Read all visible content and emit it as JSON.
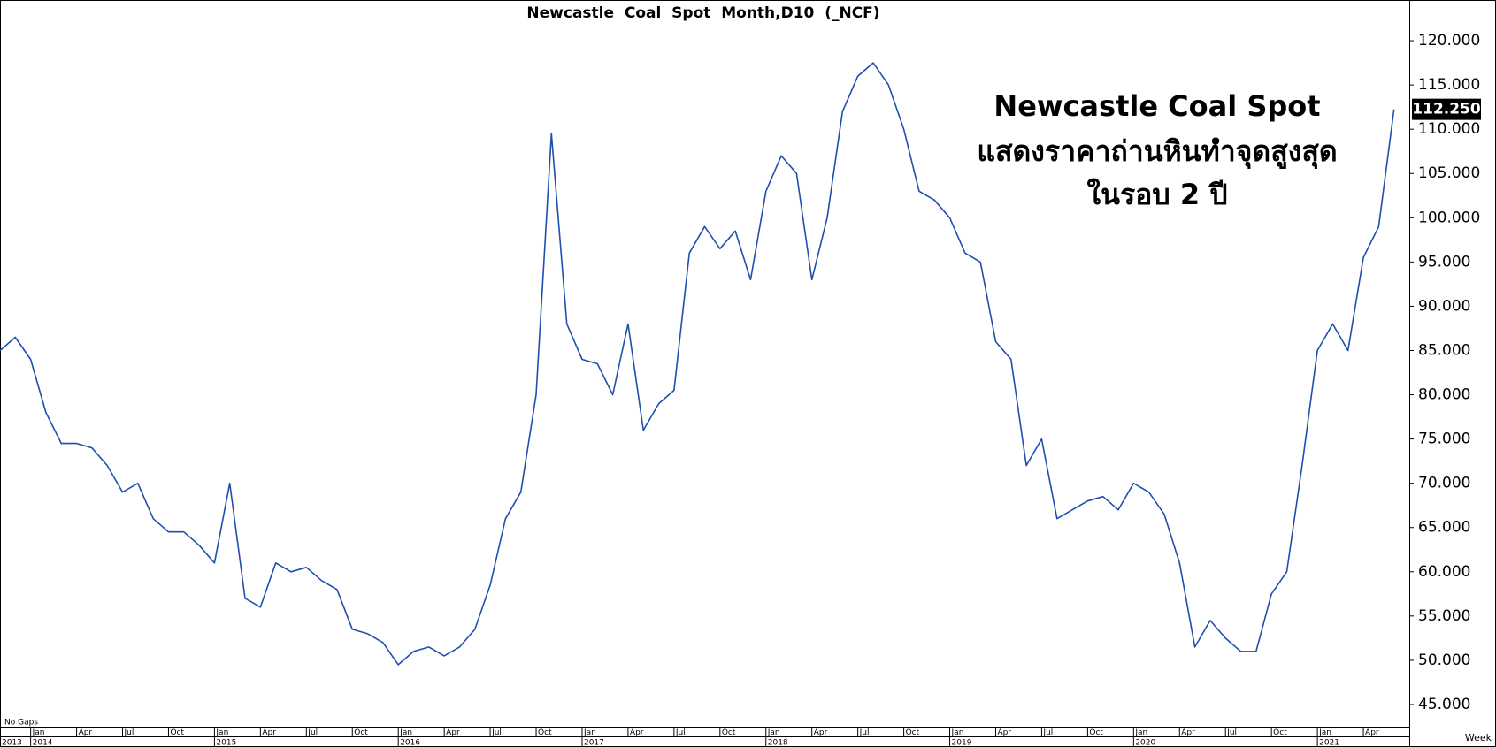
{
  "chart_data": {
    "type": "line",
    "title": "Newcastle  Coal  Spot  Month,D10  (_NCF)",
    "annotation": [
      "Newcastle Coal Spot",
      "แสดงราคาถ่านหินทำจุดสูงสุด",
      "ในรอบ 2 ปี"
    ],
    "footer_left": "No Gaps",
    "footer_right": "Week",
    "color": "#1f4fae",
    "x": [
      "2013-11",
      "2013-12",
      "2014-01",
      "2014-02",
      "2014-03",
      "2014-04",
      "2014-05",
      "2014-06",
      "2014-07",
      "2014-08",
      "2014-09",
      "2014-10",
      "2014-11",
      "2014-12",
      "2015-01",
      "2015-02",
      "2015-03",
      "2015-04",
      "2015-05",
      "2015-06",
      "2015-07",
      "2015-08",
      "2015-09",
      "2015-10",
      "2015-11",
      "2015-12",
      "2016-01",
      "2016-02",
      "2016-03",
      "2016-04",
      "2016-05",
      "2016-06",
      "2016-07",
      "2016-08",
      "2016-09",
      "2016-10",
      "2016-11",
      "2016-12",
      "2017-01",
      "2017-02",
      "2017-03",
      "2017-04",
      "2017-05",
      "2017-06",
      "2017-07",
      "2017-08",
      "2017-09",
      "2017-10",
      "2017-11",
      "2017-12",
      "2018-01",
      "2018-02",
      "2018-03",
      "2018-04",
      "2018-05",
      "2018-06",
      "2018-07",
      "2018-08",
      "2018-09",
      "2018-10",
      "2018-11",
      "2018-12",
      "2019-01",
      "2019-02",
      "2019-03",
      "2019-04",
      "2019-05",
      "2019-06",
      "2019-07",
      "2019-08",
      "2019-09",
      "2019-10",
      "2019-11",
      "2019-12",
      "2020-01",
      "2020-02",
      "2020-03",
      "2020-04",
      "2020-05",
      "2020-06",
      "2020-07",
      "2020-08",
      "2020-09",
      "2020-10",
      "2020-11",
      "2020-12",
      "2021-01",
      "2021-02",
      "2021-03",
      "2021-04",
      "2021-05",
      "2021-06"
    ],
    "values": [
      85,
      86.5,
      84,
      78,
      74.5,
      74.5,
      74,
      72,
      69,
      70,
      66,
      64.5,
      64.5,
      63,
      61,
      70,
      57,
      56,
      61,
      60,
      60.5,
      59,
      58,
      53.5,
      53,
      52,
      49.5,
      51,
      51.5,
      50.5,
      51.5,
      53.5,
      58.5,
      66,
      69,
      80,
      109.5,
      88,
      84,
      83.5,
      80,
      88,
      76,
      79,
      80.5,
      96,
      99,
      96.5,
      98.5,
      93,
      103,
      107,
      105,
      93,
      100,
      112,
      116,
      117.5,
      115,
      110,
      103,
      102,
      100,
      96,
      95,
      86,
      84,
      72,
      75,
      66,
      67,
      68,
      68.5,
      67,
      70,
      69,
      66.5,
      61,
      51.5,
      54.5,
      52.5,
      51,
      51,
      57.5,
      60,
      72,
      85,
      88,
      85,
      95.5,
      99,
      112.25
    ],
    "value_labels": [
      null,
      null,
      null,
      null,
      null,
      null,
      null,
      null,
      null,
      null,
      null,
      null,
      null,
      null,
      null,
      null,
      null,
      null,
      null,
      null,
      null,
      null,
      null,
      null,
      null,
      null,
      null,
      null,
      null,
      null,
      null,
      null,
      null,
      null,
      null,
      null,
      null,
      null,
      null,
      null,
      null,
      null,
      null,
      null,
      null,
      null,
      null,
      null,
      null,
      null,
      null,
      null,
      null,
      null,
      null,
      null,
      null,
      null,
      null,
      null,
      null,
      null,
      null,
      null,
      null,
      null,
      null,
      null,
      null,
      null,
      null,
      null,
      null,
      null,
      null,
      null,
      null,
      null,
      null,
      null,
      null,
      null,
      null,
      null,
      null,
      null,
      null,
      null,
      null,
      null,
      null,
      "112.250"
    ],
    "xlim": [
      "2013-11",
      "2021-07"
    ],
    "xticks": [
      {
        "value": "2014-01",
        "label": "Jan"
      },
      {
        "value": "2014-04",
        "label": "Apr"
      },
      {
        "value": "2014-07",
        "label": "Jul"
      },
      {
        "value": "2014-10",
        "label": "Oct"
      },
      {
        "value": "2015-01",
        "label": "Jan"
      },
      {
        "value": "2015-04",
        "label": "Apr"
      },
      {
        "value": "2015-07",
        "label": "Jul"
      },
      {
        "value": "2015-10",
        "label": "Oct"
      },
      {
        "value": "2016-01",
        "label": "Jan"
      },
      {
        "value": "2016-04",
        "label": "Apr"
      },
      {
        "value": "2016-07",
        "label": "Jul"
      },
      {
        "value": "2016-10",
        "label": "Oct"
      },
      {
        "value": "2017-01",
        "label": "Jan"
      },
      {
        "value": "2017-04",
        "label": "Apr"
      },
      {
        "value": "2017-07",
        "label": "Jul"
      },
      {
        "value": "2017-10",
        "label": "Oct"
      },
      {
        "value": "2018-01",
        "label": "Jan"
      },
      {
        "value": "2018-04",
        "label": "Apr"
      },
      {
        "value": "2018-07",
        "label": "Jul"
      },
      {
        "value": "2018-10",
        "label": "Oct"
      },
      {
        "value": "2019-01",
        "label": "Jan"
      },
      {
        "value": "2019-04",
        "label": "Apr"
      },
      {
        "value": "2019-07",
        "label": "Jul"
      },
      {
        "value": "2019-10",
        "label": "Oct"
      },
      {
        "value": "2020-01",
        "label": "Jan"
      },
      {
        "value": "2020-04",
        "label": "Apr"
      },
      {
        "value": "2020-07",
        "label": "Jul"
      },
      {
        "value": "2020-10",
        "label": "Oct"
      },
      {
        "value": "2021-01",
        "label": "Jan"
      },
      {
        "value": "2021-04",
        "label": "Apr"
      }
    ],
    "year_ticks": [
      {
        "value": "2013-11",
        "label": "2013"
      },
      {
        "value": "2014-01",
        "label": "2014"
      },
      {
        "value": "2015-01",
        "label": "2015"
      },
      {
        "value": "2016-01",
        "label": "2016"
      },
      {
        "value": "2017-01",
        "label": "2017"
      },
      {
        "value": "2018-01",
        "label": "2018"
      },
      {
        "value": "2019-01",
        "label": "2019"
      },
      {
        "value": "2020-01",
        "label": "2020"
      },
      {
        "value": "2021-01",
        "label": "2021"
      }
    ],
    "ylim": [
      42.5,
      124.6
    ],
    "yticks": [
      {
        "value": 45,
        "label": "45.000"
      },
      {
        "value": 50,
        "label": "50.000"
      },
      {
        "value": 55,
        "label": "55.000"
      },
      {
        "value": 60,
        "label": "60.000"
      },
      {
        "value": 65,
        "label": "65.000"
      },
      {
        "value": 70,
        "label": "70.000"
      },
      {
        "value": 75,
        "label": "75.000"
      },
      {
        "value": 80,
        "label": "80.000"
      },
      {
        "value": 85,
        "label": "85.000"
      },
      {
        "value": 90,
        "label": "90.000"
      },
      {
        "value": 95,
        "label": "95.000"
      },
      {
        "value": 100,
        "label": "100.000"
      },
      {
        "value": 105,
        "label": "105.000"
      },
      {
        "value": 110,
        "label": "110.000"
      },
      {
        "value": 115,
        "label": "115.000"
      },
      {
        "value": 120,
        "label": "120.000"
      }
    ],
    "grid": false
  }
}
